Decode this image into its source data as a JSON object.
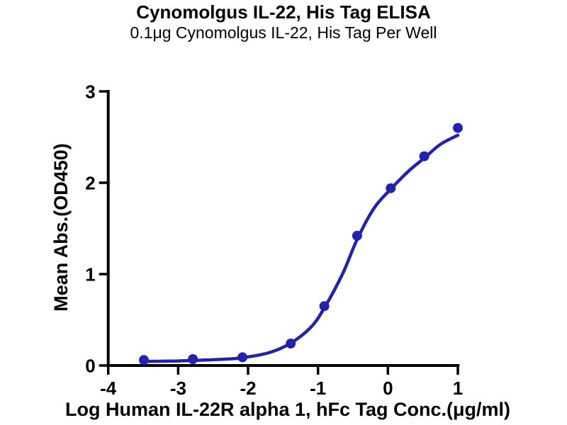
{
  "figure": {
    "background": "#ffffff",
    "axis_color": "#000000",
    "text_color": "#000000"
  },
  "chart_data": {
    "type": "scatter",
    "title": "Cynomolgus IL-22, His Tag ELISA",
    "subtitle": "0.1μg Cynomolgus IL-22, His Tag Per Well",
    "xlabel": "Log Human IL-22R alpha 1, hFc Tag Conc.(μg/ml)",
    "ylabel": "Mean Abs.(OD450)",
    "xlim": [
      -4,
      1
    ],
    "ylim": [
      0,
      3
    ],
    "x_ticks": [
      -4,
      -3,
      -2,
      -1,
      0,
      1
    ],
    "y_ticks": [
      0,
      1,
      2,
      3
    ],
    "grid": false,
    "legend": "none",
    "marker_color": "#2222aa",
    "line_color": "#2222aa",
    "marker_shape": "circle",
    "points": [
      {
        "x": -3.49,
        "y": 0.06
      },
      {
        "x": -2.79,
        "y": 0.07
      },
      {
        "x": -2.08,
        "y": 0.09
      },
      {
        "x": -1.39,
        "y": 0.24
      },
      {
        "x": -0.91,
        "y": 0.65
      },
      {
        "x": -0.44,
        "y": 1.42
      },
      {
        "x": 0.04,
        "y": 1.94
      },
      {
        "x": 0.52,
        "y": 2.29
      },
      {
        "x": 1.0,
        "y": 2.6
      }
    ],
    "fit_curve": [
      [
        -3.49,
        0.045
      ],
      [
        -3.1,
        0.048
      ],
      [
        -2.79,
        0.055
      ],
      [
        -2.4,
        0.067
      ],
      [
        -2.08,
        0.085
      ],
      [
        -1.7,
        0.14
      ],
      [
        -1.39,
        0.245
      ],
      [
        -1.1,
        0.42
      ],
      [
        -0.91,
        0.63
      ],
      [
        -0.65,
        1.0
      ],
      [
        -0.44,
        1.38
      ],
      [
        -0.2,
        1.72
      ],
      [
        0.04,
        1.93
      ],
      [
        0.3,
        2.13
      ],
      [
        0.52,
        2.27
      ],
      [
        0.75,
        2.42
      ],
      [
        1.0,
        2.52
      ]
    ]
  }
}
